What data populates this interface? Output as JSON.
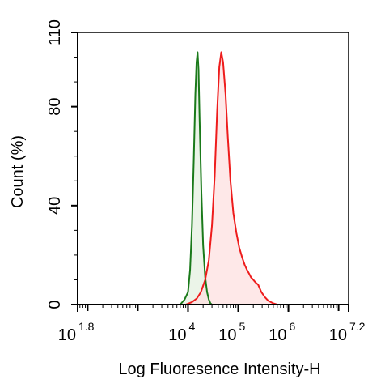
{
  "chart_data": {
    "type": "area",
    "xlabel": "Log Fluoresence Intensity-H",
    "ylabel": "Count  (%)",
    "x_scale": "log",
    "xlim": [
      63.0957,
      15848932
    ],
    "ylim": [
      0,
      110
    ],
    "x_ticks": [
      {
        "value": 63.0957,
        "base": "10",
        "exp": "1.8"
      },
      {
        "value": 10000,
        "base": "10",
        "exp": "4"
      },
      {
        "value": 100000,
        "base": "10",
        "exp": "5"
      },
      {
        "value": 1000000,
        "base": "10",
        "exp": "6"
      },
      {
        "value": 15848932,
        "base": "10",
        "exp": "7.2"
      }
    ],
    "y_ticks": [
      "0",
      "40",
      "80",
      "110"
    ],
    "grid": false,
    "series": [
      {
        "color": "#1a7a1a",
        "fill": "#e4f0e0",
        "x": [
          7000,
          8500,
          10000,
          11000,
          12000,
          13000,
          14000,
          14800,
          15500,
          16200,
          17000,
          18500,
          20000,
          22000,
          24000,
          26000,
          28000,
          30000
        ],
        "y": [
          0,
          2,
          5,
          14,
          32,
          58,
          85,
          98,
          102,
          95,
          75,
          45,
          24,
          11,
          5,
          2,
          0.5,
          0
        ]
      },
      {
        "color": "#ee1c1c",
        "fill": "#fde0e0",
        "x": [
          9000,
          12000,
          15000,
          18000,
          22000,
          26000,
          30000,
          34000,
          38000,
          42000,
          46000,
          50000,
          56000,
          62000,
          70000,
          80000,
          92000,
          105000,
          120000,
          135000,
          150000,
          165000,
          180000,
          200000,
          220000,
          250000,
          290000,
          340000,
          400000,
          500000,
          600000
        ],
        "y": [
          0,
          1,
          2.5,
          5,
          10,
          18,
          32,
          52,
          78,
          96,
          102,
          98,
          85,
          68,
          50,
          37,
          29,
          23,
          19,
          16,
          14,
          12.5,
          11,
          10,
          9,
          8,
          5,
          3,
          1.5,
          0.5,
          0
        ]
      }
    ]
  }
}
